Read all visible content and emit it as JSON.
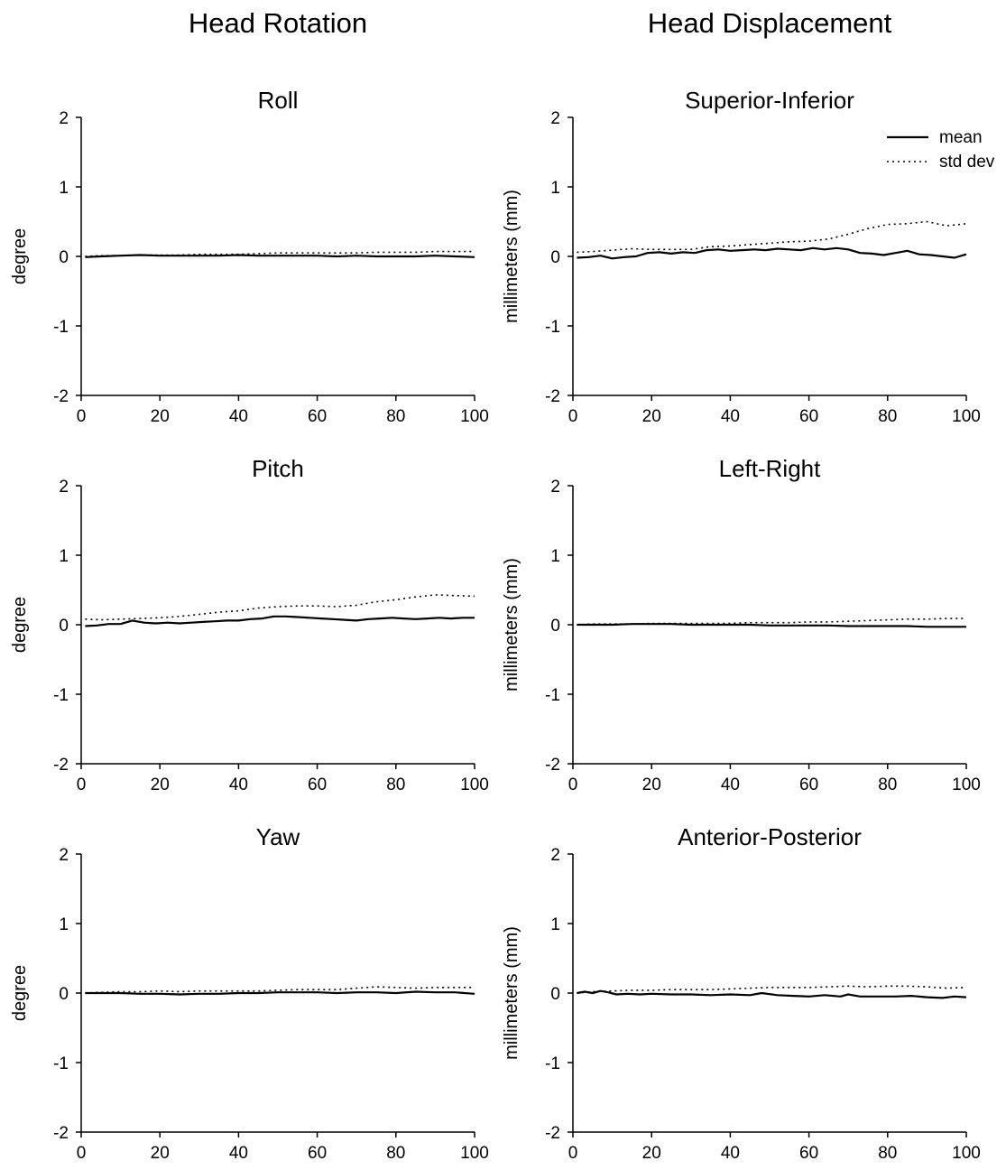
{
  "columns": {
    "left_title": "Head Rotation",
    "right_title": "Head Displacement"
  },
  "chart_data": [
    {
      "type": "line",
      "title": "Roll",
      "xlabel": "",
      "ylabel": "degree",
      "xlim": [
        0,
        100
      ],
      "ylim": [
        -2,
        2
      ],
      "xticks": [
        0,
        20,
        40,
        60,
        80,
        100
      ],
      "yticks": [
        -2,
        -1,
        0,
        1,
        2
      ],
      "series": [
        {
          "name": "mean",
          "style": "solid",
          "x": [
            1,
            5,
            10,
            15,
            20,
            25,
            30,
            35,
            40,
            45,
            50,
            55,
            60,
            65,
            70,
            75,
            80,
            85,
            90,
            95,
            100
          ],
          "values": [
            -0.01,
            0.0,
            0.01,
            0.02,
            0.01,
            0.01,
            0.01,
            0.01,
            0.02,
            0.01,
            0.01,
            0.01,
            0.01,
            0.0,
            0.01,
            0.0,
            0.0,
            0.0,
            0.01,
            0.0,
            -0.01
          ]
        },
        {
          "name": "std dev",
          "style": "dotted",
          "x": [
            1,
            5,
            10,
            15,
            20,
            25,
            30,
            35,
            40,
            45,
            50,
            55,
            60,
            65,
            70,
            75,
            80,
            85,
            90,
            95,
            100
          ],
          "values": [
            0.0,
            0.01,
            0.01,
            0.02,
            0.02,
            0.02,
            0.03,
            0.03,
            0.03,
            0.04,
            0.05,
            0.05,
            0.05,
            0.05,
            0.05,
            0.06,
            0.06,
            0.06,
            0.07,
            0.07,
            0.07
          ]
        }
      ]
    },
    {
      "type": "line",
      "title": "Superior-Inferior",
      "xlabel": "",
      "ylabel": "millimeters (mm)",
      "xlim": [
        0,
        100
      ],
      "ylim": [
        -2,
        2
      ],
      "xticks": [
        0,
        20,
        40,
        60,
        80,
        100
      ],
      "yticks": [
        -2,
        -1,
        0,
        1,
        2
      ],
      "legend": {
        "position": "top-right"
      },
      "series": [
        {
          "name": "mean",
          "style": "solid",
          "x": [
            1,
            4,
            7,
            10,
            13,
            16,
            19,
            22,
            25,
            28,
            31,
            34,
            37,
            40,
            43,
            46,
            49,
            52,
            55,
            58,
            61,
            64,
            67,
            70,
            73,
            76,
            79,
            82,
            85,
            88,
            91,
            94,
            97,
            100
          ],
          "values": [
            -0.02,
            -0.01,
            0.01,
            -0.03,
            -0.01,
            0.0,
            0.05,
            0.06,
            0.04,
            0.06,
            0.05,
            0.09,
            0.1,
            0.08,
            0.09,
            0.1,
            0.09,
            0.11,
            0.1,
            0.09,
            0.12,
            0.1,
            0.12,
            0.1,
            0.05,
            0.04,
            0.02,
            0.05,
            0.08,
            0.03,
            0.02,
            0.0,
            -0.02,
            0.03
          ]
        },
        {
          "name": "std dev",
          "style": "dotted",
          "x": [
            1,
            5,
            10,
            15,
            20,
            25,
            30,
            35,
            40,
            45,
            50,
            55,
            60,
            65,
            70,
            75,
            80,
            85,
            90,
            95,
            100
          ],
          "values": [
            0.06,
            0.07,
            0.09,
            0.11,
            0.1,
            0.1,
            0.1,
            0.14,
            0.15,
            0.17,
            0.19,
            0.21,
            0.22,
            0.25,
            0.32,
            0.4,
            0.46,
            0.47,
            0.5,
            0.44,
            0.47
          ]
        }
      ]
    },
    {
      "type": "line",
      "title": "Pitch",
      "xlabel": "",
      "ylabel": "degree",
      "xlim": [
        0,
        100
      ],
      "ylim": [
        -2,
        2
      ],
      "xticks": [
        0,
        20,
        40,
        60,
        80,
        100
      ],
      "yticks": [
        -2,
        -1,
        0,
        1,
        2
      ],
      "series": [
        {
          "name": "mean",
          "style": "solid",
          "x": [
            1,
            4,
            7,
            10,
            13,
            16,
            19,
            22,
            25,
            28,
            31,
            34,
            37,
            40,
            43,
            46,
            49,
            52,
            55,
            58,
            61,
            64,
            67,
            70,
            73,
            76,
            79,
            82,
            85,
            88,
            91,
            94,
            97,
            100
          ],
          "values": [
            -0.02,
            -0.01,
            0.01,
            0.01,
            0.06,
            0.03,
            0.02,
            0.03,
            0.02,
            0.03,
            0.04,
            0.05,
            0.06,
            0.06,
            0.08,
            0.09,
            0.12,
            0.12,
            0.11,
            0.1,
            0.09,
            0.08,
            0.07,
            0.06,
            0.08,
            0.09,
            0.1,
            0.09,
            0.08,
            0.09,
            0.1,
            0.09,
            0.1,
            0.1
          ]
        },
        {
          "name": "std dev",
          "style": "dotted",
          "x": [
            1,
            5,
            10,
            15,
            20,
            25,
            30,
            35,
            40,
            45,
            50,
            55,
            60,
            65,
            70,
            75,
            80,
            85,
            90,
            95,
            100
          ],
          "values": [
            0.08,
            0.07,
            0.08,
            0.09,
            0.1,
            0.12,
            0.15,
            0.18,
            0.2,
            0.24,
            0.26,
            0.27,
            0.27,
            0.26,
            0.28,
            0.33,
            0.36,
            0.4,
            0.43,
            0.42,
            0.41
          ]
        }
      ]
    },
    {
      "type": "line",
      "title": "Left-Right",
      "xlabel": "",
      "ylabel": "millimeters (mm)",
      "xlim": [
        0,
        100
      ],
      "ylim": [
        -2,
        2
      ],
      "xticks": [
        0,
        20,
        40,
        60,
        80,
        100
      ],
      "yticks": [
        -2,
        -1,
        0,
        1,
        2
      ],
      "series": [
        {
          "name": "mean",
          "style": "solid",
          "x": [
            1,
            5,
            10,
            15,
            20,
            25,
            30,
            35,
            40,
            45,
            50,
            55,
            60,
            65,
            70,
            75,
            80,
            85,
            90,
            95,
            100
          ],
          "values": [
            0.0,
            0.0,
            0.0,
            0.01,
            0.01,
            0.01,
            0.0,
            0.0,
            0.0,
            0.0,
            -0.01,
            -0.01,
            -0.01,
            -0.01,
            -0.02,
            -0.02,
            -0.02,
            -0.02,
            -0.03,
            -0.03,
            -0.03
          ]
        },
        {
          "name": "std dev",
          "style": "dotted",
          "x": [
            1,
            5,
            10,
            15,
            20,
            25,
            30,
            35,
            40,
            45,
            50,
            55,
            60,
            65,
            70,
            75,
            80,
            85,
            90,
            95,
            100
          ],
          "values": [
            0.0,
            0.01,
            0.01,
            0.01,
            0.02,
            0.02,
            0.02,
            0.02,
            0.02,
            0.03,
            0.03,
            0.03,
            0.04,
            0.04,
            0.05,
            0.06,
            0.07,
            0.08,
            0.08,
            0.09,
            0.09
          ]
        }
      ]
    },
    {
      "type": "line",
      "title": "Yaw",
      "xlabel": "",
      "ylabel": "degree",
      "xlim": [
        0,
        100
      ],
      "ylim": [
        -2,
        2
      ],
      "xticks": [
        0,
        20,
        40,
        60,
        80,
        100
      ],
      "yticks": [
        -2,
        -1,
        0,
        1,
        2
      ],
      "series": [
        {
          "name": "mean",
          "style": "solid",
          "x": [
            1,
            5,
            10,
            15,
            20,
            25,
            30,
            35,
            40,
            45,
            50,
            55,
            60,
            65,
            70,
            75,
            80,
            85,
            90,
            95,
            100
          ],
          "values": [
            0.0,
            0.0,
            0.0,
            -0.01,
            -0.01,
            -0.02,
            -0.01,
            -0.01,
            0.0,
            0.0,
            0.01,
            0.01,
            0.01,
            0.0,
            0.01,
            0.01,
            0.0,
            0.02,
            0.01,
            0.01,
            -0.01
          ]
        },
        {
          "name": "std dev",
          "style": "dotted",
          "x": [
            1,
            5,
            10,
            15,
            20,
            25,
            30,
            35,
            40,
            45,
            50,
            55,
            60,
            65,
            70,
            75,
            80,
            85,
            90,
            95,
            100
          ],
          "values": [
            0.0,
            0.01,
            0.02,
            0.02,
            0.03,
            0.02,
            0.03,
            0.03,
            0.03,
            0.03,
            0.04,
            0.05,
            0.05,
            0.05,
            0.07,
            0.09,
            0.08,
            0.07,
            0.08,
            0.08,
            0.08
          ]
        }
      ]
    },
    {
      "type": "line",
      "title": "Anterior-Posterior",
      "xlabel": "",
      "ylabel": "millimeters (mm)",
      "xlim": [
        0,
        100
      ],
      "ylim": [
        -2,
        2
      ],
      "xticks": [
        0,
        20,
        40,
        60,
        80,
        100
      ],
      "yticks": [
        -2,
        -1,
        0,
        1,
        2
      ],
      "series": [
        {
          "name": "mean",
          "style": "solid",
          "x": [
            1,
            3,
            5,
            7,
            9,
            11,
            14,
            17,
            20,
            25,
            30,
            35,
            40,
            45,
            48,
            52,
            56,
            60,
            64,
            68,
            70,
            73,
            78,
            82,
            86,
            90,
            94,
            97,
            100
          ],
          "values": [
            0.0,
            0.02,
            0.0,
            0.03,
            0.01,
            -0.02,
            -0.01,
            -0.02,
            -0.01,
            -0.02,
            -0.02,
            -0.03,
            -0.02,
            -0.03,
            0.0,
            -0.03,
            -0.04,
            -0.05,
            -0.03,
            -0.05,
            -0.02,
            -0.05,
            -0.05,
            -0.05,
            -0.04,
            -0.06,
            -0.07,
            -0.05,
            -0.06
          ]
        },
        {
          "name": "std dev",
          "style": "dotted",
          "x": [
            1,
            5,
            10,
            15,
            20,
            25,
            30,
            35,
            40,
            45,
            50,
            55,
            60,
            65,
            70,
            75,
            80,
            85,
            90,
            95,
            100
          ],
          "values": [
            0.0,
            0.02,
            0.03,
            0.04,
            0.04,
            0.05,
            0.05,
            0.05,
            0.06,
            0.07,
            0.08,
            0.08,
            0.08,
            0.09,
            0.1,
            0.09,
            0.1,
            0.1,
            0.09,
            0.07,
            0.08
          ]
        }
      ]
    }
  ]
}
